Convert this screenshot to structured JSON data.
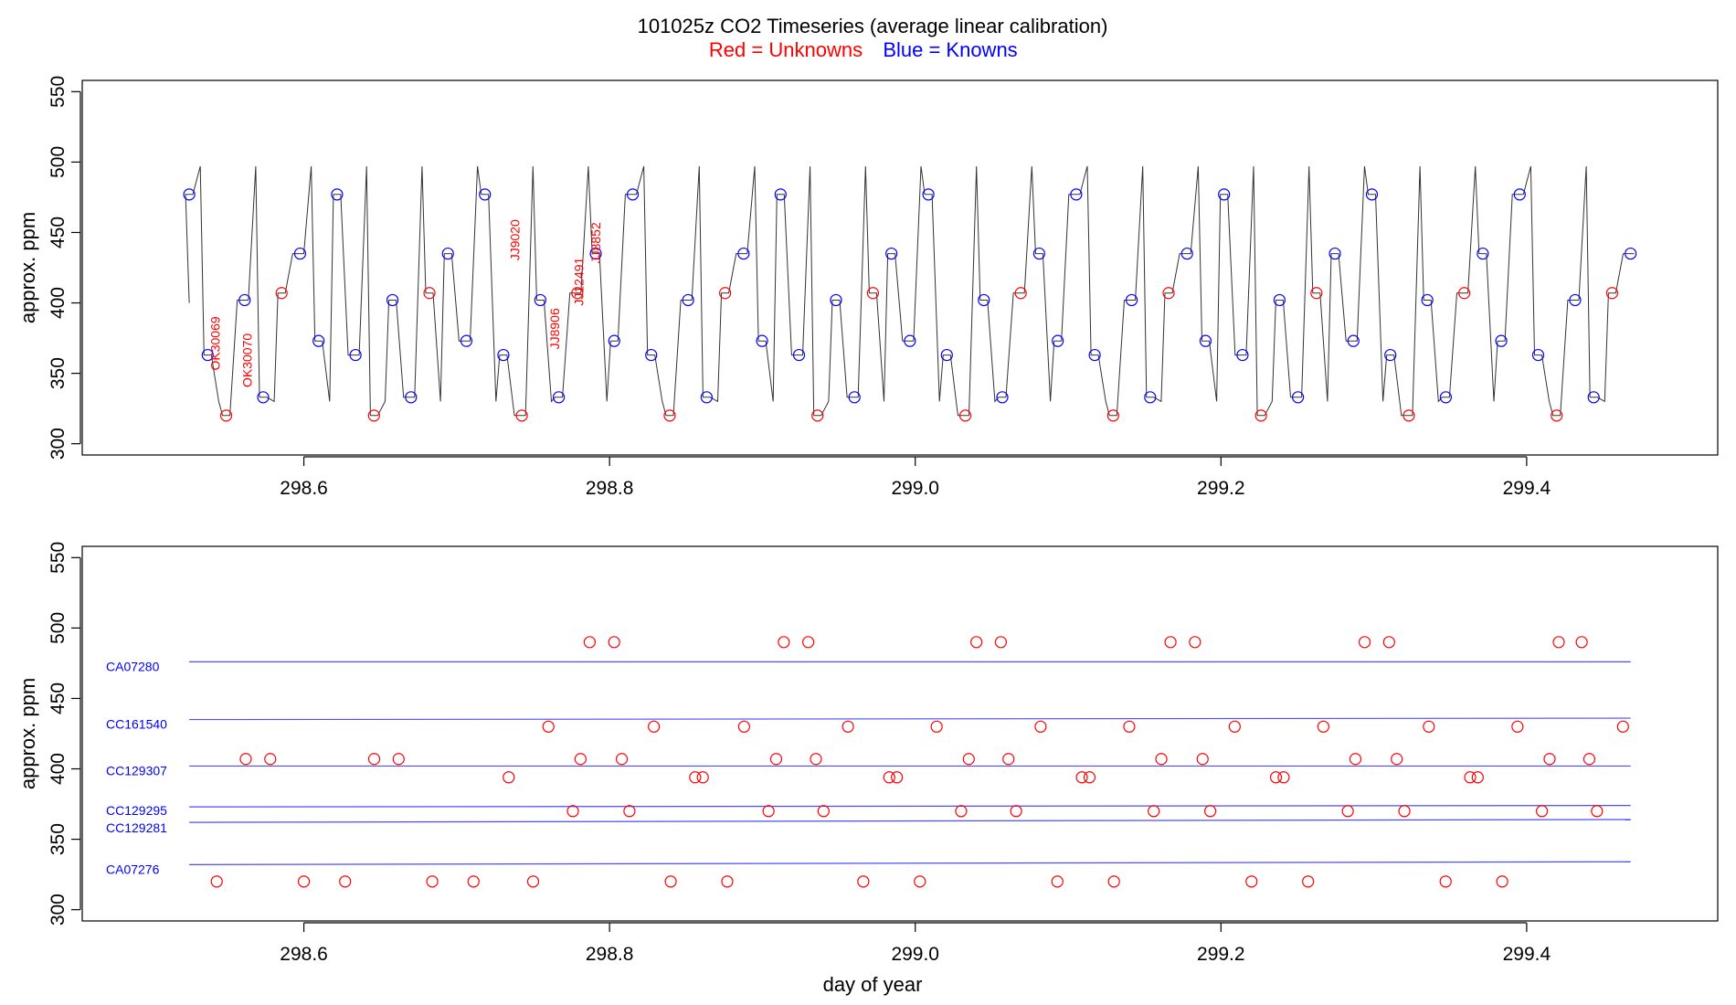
{
  "figure": {
    "title": "101025z   CO2 Timeseries (average linear calibration)",
    "subtitle_red": "Red = Unknowns",
    "subtitle_blue": "Blue = Knowns",
    "colors": {
      "unknown": "#ff0000",
      "known": "#0000ff",
      "trace": "#333333"
    }
  },
  "chart_data": [
    {
      "type": "line",
      "name": "timeseries",
      "title": "101025z   CO2 Timeseries (average linear calibration)",
      "xlabel": "",
      "ylabel": "approx. ppm",
      "xlim": [
        298.455,
        299.525
      ],
      "ylim": [
        292,
        558
      ],
      "xticks": [
        298.6,
        298.8,
        299.0,
        299.2,
        299.4
      ],
      "xtick_labels": [
        "298.6",
        "298.8",
        "299.0",
        "299.2",
        "299.4"
      ],
      "yticks": [
        300,
        350,
        400,
        450,
        500,
        550
      ],
      "ytick_labels": [
        "300",
        "350",
        "400",
        "450",
        "500",
        "550"
      ],
      "cycle_pattern": [
        {
          "level": 477,
          "series": "known"
        },
        {
          "level": 363,
          "series": "known"
        },
        {
          "level": 320,
          "series": "unknown"
        },
        {
          "level": 402,
          "series": "known"
        },
        {
          "level": 333,
          "series": "known"
        },
        {
          "level": 407,
          "series": "unknown"
        },
        {
          "level": 435,
          "series": "known"
        },
        {
          "level": 373,
          "series": "known"
        }
      ],
      "x_start": 298.525,
      "x_end": 299.468,
      "annotations": [
        {
          "text": "OK30069",
          "x": 298.542,
          "y": 352
        },
        {
          "text": "OK30070",
          "x": 298.563,
          "y": 340
        },
        {
          "text": "JJ9020",
          "x": 298.738,
          "y": 430
        },
        {
          "text": "JJ8906",
          "x": 298.764,
          "y": 367
        },
        {
          "text": "JJ12491",
          "x": 298.78,
          "y": 398
        },
        {
          "text": "JJ8852",
          "x": 298.791,
          "y": 428
        }
      ]
    },
    {
      "type": "scatter",
      "name": "unknowns",
      "xlabel": "day of year",
      "ylabel": "approx. ppm",
      "xlim": [
        298.455,
        299.525
      ],
      "ylim": [
        292,
        558
      ],
      "xticks": [
        298.6,
        298.8,
        299.0,
        299.2,
        299.4
      ],
      "xtick_labels": [
        "298.6",
        "298.8",
        "299.0",
        "299.2",
        "299.4"
      ],
      "yticks": [
        300,
        350,
        400,
        450,
        500,
        550
      ],
      "ytick_labels": [
        "300",
        "350",
        "400",
        "450",
        "500",
        "550"
      ],
      "reference_lines": [
        {
          "name": "CA07280",
          "y_start": 476,
          "y_end": 476
        },
        {
          "name": "CC161540",
          "y_start": 435,
          "y_end": 436
        },
        {
          "name": "CC129307",
          "y_start": 402,
          "y_end": 402
        },
        {
          "name": "CC129295",
          "y_start": 373,
          "y_end": 374
        },
        {
          "name": "CC129281",
          "y_start": 362,
          "y_end": 364
        },
        {
          "name": "CA07276",
          "y_start": 332,
          "y_end": 334
        }
      ],
      "ref_x_range": [
        298.525,
        299.468
      ],
      "points": [
        [
          298.543,
          320
        ],
        [
          298.562,
          407
        ],
        [
          298.578,
          407
        ],
        [
          298.6,
          320
        ],
        [
          298.627,
          320
        ],
        [
          298.646,
          407
        ],
        [
          298.662,
          407
        ],
        [
          298.684,
          320
        ],
        [
          298.711,
          320
        ],
        [
          298.734,
          394
        ],
        [
          298.75,
          320
        ],
        [
          298.76,
          430
        ],
        [
          298.776,
          370
        ],
        [
          298.781,
          407
        ],
        [
          298.787,
          490
        ],
        [
          298.803,
          490
        ],
        [
          298.808,
          407
        ],
        [
          298.813,
          370
        ],
        [
          298.829,
          430
        ],
        [
          298.84,
          320
        ],
        [
          298.856,
          394
        ],
        [
          298.861,
          394
        ],
        [
          298.877,
          320
        ],
        [
          298.888,
          430
        ],
        [
          298.904,
          370
        ],
        [
          298.909,
          407
        ],
        [
          298.914,
          490
        ],
        [
          298.93,
          490
        ],
        [
          298.935,
          407
        ],
        [
          298.94,
          370
        ],
        [
          298.956,
          430
        ],
        [
          298.966,
          320
        ],
        [
          298.983,
          394
        ],
        [
          298.988,
          394
        ],
        [
          299.003,
          320
        ],
        [
          299.014,
          430
        ],
        [
          299.03,
          370
        ],
        [
          299.035,
          407
        ],
        [
          299.04,
          490
        ],
        [
          299.056,
          490
        ],
        [
          299.061,
          407
        ],
        [
          299.066,
          370
        ],
        [
          299.082,
          430
        ],
        [
          299.093,
          320
        ],
        [
          299.109,
          394
        ],
        [
          299.114,
          394
        ],
        [
          299.13,
          320
        ],
        [
          299.14,
          430
        ],
        [
          299.156,
          370
        ],
        [
          299.161,
          407
        ],
        [
          299.167,
          490
        ],
        [
          299.183,
          490
        ],
        [
          299.188,
          407
        ],
        [
          299.193,
          370
        ],
        [
          299.209,
          430
        ],
        [
          299.22,
          320
        ],
        [
          299.236,
          394
        ],
        [
          299.241,
          394
        ],
        [
          299.257,
          320
        ],
        [
          299.267,
          430
        ],
        [
          299.283,
          370
        ],
        [
          299.288,
          407
        ],
        [
          299.294,
          490
        ],
        [
          299.31,
          490
        ],
        [
          299.315,
          407
        ],
        [
          299.32,
          370
        ],
        [
          299.336,
          430
        ],
        [
          299.347,
          320
        ],
        [
          299.363,
          394
        ],
        [
          299.368,
          394
        ],
        [
          299.384,
          320
        ],
        [
          299.394,
          430
        ],
        [
          299.41,
          370
        ],
        [
          299.415,
          407
        ],
        [
          299.421,
          490
        ],
        [
          299.436,
          490
        ],
        [
          299.441,
          407
        ],
        [
          299.446,
          370
        ],
        [
          299.463,
          430
        ]
      ]
    }
  ]
}
